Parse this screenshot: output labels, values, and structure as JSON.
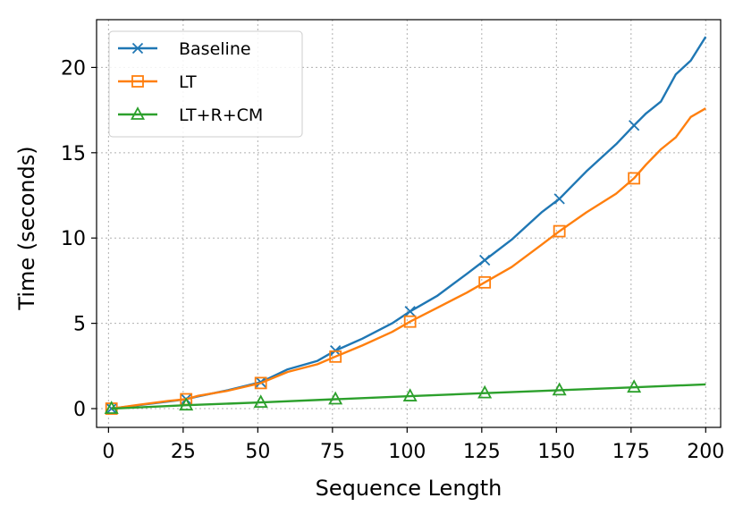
{
  "chart_data": {
    "type": "line",
    "xlabel": "Sequence Length",
    "ylabel": "Time (seconds)",
    "xlim": [
      -4,
      205
    ],
    "ylim": [
      -1.1,
      22.8
    ],
    "xticks": [
      0,
      25,
      50,
      75,
      100,
      125,
      150,
      175,
      200
    ],
    "yticks": [
      0,
      5,
      10,
      15,
      20
    ],
    "grid": true,
    "legend_position": "top-left",
    "series": [
      {
        "name": "Baseline",
        "color": "#1f77b4",
        "marker": "x",
        "x": [
          1,
          10,
          20,
          26,
          30,
          40,
          51,
          60,
          70,
          76,
          85,
          95,
          101,
          110,
          120,
          126,
          135,
          145,
          151,
          160,
          170,
          176,
          180,
          185,
          190,
          195,
          200
        ],
        "y": [
          0.0,
          0.2,
          0.42,
          0.55,
          0.72,
          1.08,
          1.55,
          2.3,
          2.8,
          3.4,
          4.1,
          5.0,
          5.7,
          6.6,
          7.9,
          8.7,
          9.9,
          11.5,
          12.3,
          13.9,
          15.5,
          16.6,
          17.3,
          18.0,
          19.6,
          20.4,
          21.8
        ]
      },
      {
        "name": "LT",
        "color": "#ff7f0e",
        "marker": "square",
        "x": [
          1,
          10,
          20,
          26,
          30,
          40,
          51,
          60,
          70,
          76,
          85,
          95,
          101,
          110,
          120,
          126,
          135,
          145,
          151,
          160,
          170,
          176,
          180,
          185,
          190,
          195,
          200
        ],
        "y": [
          0.0,
          0.22,
          0.45,
          0.55,
          0.75,
          1.05,
          1.5,
          2.15,
          2.6,
          3.05,
          3.7,
          4.5,
          5.1,
          5.9,
          6.8,
          7.4,
          8.3,
          9.6,
          10.4,
          11.5,
          12.6,
          13.5,
          14.3,
          15.2,
          15.9,
          17.1,
          17.6
        ]
      },
      {
        "name": "LT+R+CM",
        "color": "#2ca02c",
        "marker": "triangle",
        "x": [
          1,
          26,
          51,
          76,
          101,
          126,
          151,
          176,
          200
        ],
        "y": [
          0.0,
          0.2,
          0.36,
          0.55,
          0.73,
          0.91,
          1.08,
          1.25,
          1.42
        ]
      }
    ],
    "marker_x": [
      1,
      26,
      51,
      76,
      101,
      126,
      151,
      176
    ]
  }
}
